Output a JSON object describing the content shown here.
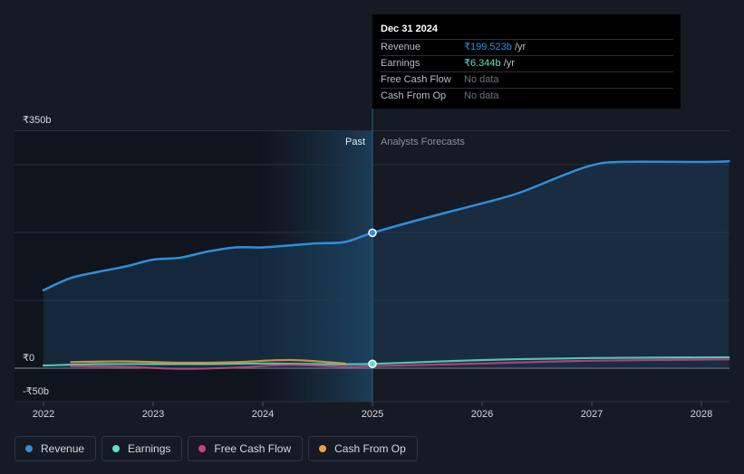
{
  "chart_data": {
    "type": "line",
    "y_axis": {
      "labels": [
        "₹350b",
        "₹0",
        "-₹50b"
      ],
      "ylim": [
        -50,
        350
      ]
    },
    "x_axis": {
      "ticks": [
        "2022",
        "2023",
        "2024",
        "2025",
        "2026",
        "2027",
        "2028"
      ]
    },
    "sections": {
      "past_label": "Past",
      "forecast_label": "Analysts Forecasts"
    },
    "series": [
      {
        "name": "Revenue",
        "color": "#2d8fdd",
        "points": [
          [
            2022.0,
            115
          ],
          [
            2022.25,
            133
          ],
          [
            2022.5,
            142
          ],
          [
            2022.75,
            150
          ],
          [
            2023.0,
            160
          ],
          [
            2023.25,
            163
          ],
          [
            2023.5,
            172
          ],
          [
            2023.75,
            178
          ],
          [
            2024.0,
            178
          ],
          [
            2024.25,
            181
          ],
          [
            2024.5,
            184
          ],
          [
            2024.75,
            186
          ],
          [
            2025.0,
            199.5
          ],
          [
            2025.5,
            222
          ],
          [
            2026.0,
            243
          ],
          [
            2026.33,
            258
          ],
          [
            2026.75,
            285
          ],
          [
            2027.0,
            299
          ],
          [
            2027.25,
            304
          ],
          [
            2028.0,
            304
          ],
          [
            2028.25,
            305
          ]
        ]
      },
      {
        "name": "Earnings",
        "color": "#5fe0c9",
        "points": [
          [
            2022.0,
            4
          ],
          [
            2022.5,
            6
          ],
          [
            2023.0,
            6
          ],
          [
            2023.5,
            6
          ],
          [
            2024.0,
            7
          ],
          [
            2024.5,
            6
          ],
          [
            2025.0,
            6.3
          ],
          [
            2026.0,
            12
          ],
          [
            2027.0,
            15
          ],
          [
            2028.25,
            16
          ]
        ]
      },
      {
        "name": "Free Cash Flow",
        "color": "#c8447d",
        "points": [
          [
            2022.25,
            3
          ],
          [
            2022.75,
            2
          ],
          [
            2023.25,
            -1
          ],
          [
            2023.75,
            1
          ],
          [
            2024.25,
            5
          ],
          [
            2024.75,
            2
          ],
          [
            2025.0,
            3
          ],
          [
            2026.0,
            7
          ],
          [
            2027.0,
            11
          ],
          [
            2028.25,
            13
          ]
        ]
      },
      {
        "name": "Cash From Op",
        "color": "#e8a23c",
        "points": [
          [
            2022.25,
            9
          ],
          [
            2022.75,
            10
          ],
          [
            2023.25,
            8
          ],
          [
            2023.75,
            9
          ],
          [
            2024.25,
            12
          ],
          [
            2024.75,
            7
          ]
        ]
      }
    ]
  },
  "tooltip": {
    "date": "Dec 31 2024",
    "rows": [
      {
        "label": "Revenue",
        "value": "₹199.523b",
        "unit": " /yr"
      },
      {
        "label": "Earnings",
        "value": "₹6.344b",
        "unit": " /yr"
      },
      {
        "label": "Free Cash Flow",
        "value": "No data"
      },
      {
        "label": "Cash From Op",
        "value": "No data"
      }
    ]
  },
  "legend": [
    {
      "label": "Revenue",
      "color": "#2d8fdd"
    },
    {
      "label": "Earnings",
      "color": "#5fe0c9"
    },
    {
      "label": "Free Cash Flow",
      "color": "#c8447d"
    },
    {
      "label": "Cash From Op",
      "color": "#e8a23c"
    }
  ]
}
